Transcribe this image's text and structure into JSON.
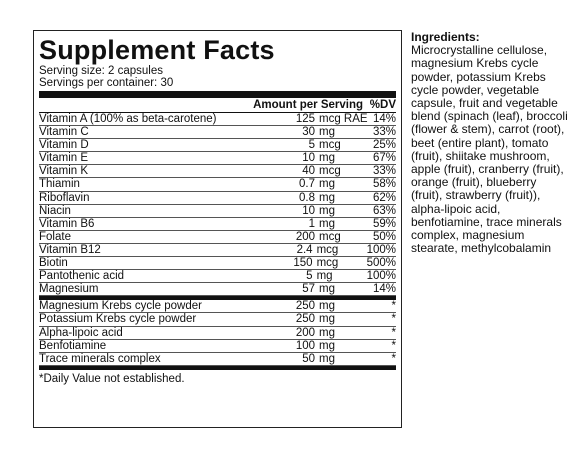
{
  "panel": {
    "title": "Supplement Facts",
    "serving_size": "Serving size: 2 capsules",
    "servings_per_container": "Servings per container: 30",
    "header_amount": "Amount per Serving",
    "header_dv": "%DV",
    "rows_a": [
      {
        "name": "Vitamin A (100% as beta-carotene)",
        "num": "125",
        "unit": "mcg RAE",
        "dv": "14%"
      },
      {
        "name": "Vitamin C",
        "num": "30",
        "unit": "mg",
        "dv": "33%"
      },
      {
        "name": "Vitamin D",
        "num": "5",
        "unit": "mcg",
        "dv": "25%"
      },
      {
        "name": "Vitamin E",
        "num": "10",
        "unit": "mg",
        "dv": "67%"
      },
      {
        "name": "Vitamin K",
        "num": "40",
        "unit": "mcg",
        "dv": "33%"
      },
      {
        "name": "Thiamin",
        "num": "0.7",
        "unit": "mg",
        "dv": "58%"
      },
      {
        "name": "Riboflavin",
        "num": "0.8",
        "unit": "mg",
        "dv": "62%"
      },
      {
        "name": "Niacin",
        "num": "10",
        "unit": "mg",
        "dv": "63%"
      },
      {
        "name": "Vitamin B6",
        "num": "1",
        "unit": "mg",
        "dv": "59%"
      },
      {
        "name": "Folate",
        "num": "200",
        "unit": "mcg",
        "dv": "50%"
      },
      {
        "name": "Vitamin B12",
        "num": "2.4",
        "unit": "mcg",
        "dv": "100%"
      },
      {
        "name": "Biotin",
        "num": "150",
        "unit": "mcg",
        "dv": "500%"
      },
      {
        "name": "Pantothenic acid",
        "num": "5",
        "unit": "mg",
        "dv": "100%"
      },
      {
        "name": "Magnesium",
        "num": "57",
        "unit": "mg",
        "dv": "14%"
      }
    ],
    "rows_b": [
      {
        "name": "Magnesium Krebs cycle powder",
        "num": "250",
        "unit": "mg",
        "dv": "*"
      },
      {
        "name": "Potassium Krebs cycle powder",
        "num": "250",
        "unit": "mg",
        "dv": "*"
      },
      {
        "name": "Alpha-lipoic acid",
        "num": "200",
        "unit": "mg",
        "dv": "*"
      },
      {
        "name": "Benfotiamine",
        "num": "100",
        "unit": "mg",
        "dv": "*"
      },
      {
        "name": "Trace minerals complex",
        "num": "50",
        "unit": "mg",
        "dv": "*"
      }
    ],
    "footnote": "*Daily Value not established."
  },
  "ingredients": {
    "title": "Ingredients:",
    "text": "Microcrystalline cellulose, magnesium Krebs cycle powder, potassium Krebs cycle powder, vegetable capsule, fruit and vegetable blend (spinach (leaf), broccoli (flower & stem), carrot (root), beet (entire plant), tomato (fruit), shiitake mushroom, apple (fruit), cranberry (fruit), orange (fruit), blueberry (fruit), strawberry (fruit)), alpha-lipoic acid, benfotiamine, trace minerals complex, magnesium stearate, methylcobalamin"
  }
}
